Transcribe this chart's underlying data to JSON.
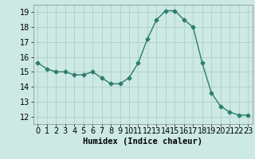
{
  "x": [
    0,
    1,
    2,
    3,
    4,
    5,
    6,
    7,
    8,
    9,
    10,
    11,
    12,
    13,
    14,
    15,
    16,
    17,
    18,
    19,
    20,
    21,
    22,
    23
  ],
  "y": [
    15.6,
    15.2,
    15.0,
    15.0,
    14.8,
    14.8,
    15.0,
    14.6,
    14.2,
    14.2,
    14.6,
    15.6,
    17.2,
    18.5,
    19.1,
    19.1,
    18.5,
    18.0,
    15.6,
    13.6,
    12.7,
    12.3,
    12.1,
    12.1
  ],
  "line_color": "#2e7d6e",
  "marker": "D",
  "marker_size": 2.5,
  "bg_color": "#cce9e4",
  "grid_color": "#b0ceca",
  "xlabel": "Humidex (Indice chaleur)",
  "xlim": [
    -0.5,
    23.5
  ],
  "ylim": [
    11.5,
    19.5
  ],
  "yticks": [
    12,
    13,
    14,
    15,
    16,
    17,
    18,
    19
  ],
  "xticks": [
    0,
    1,
    2,
    3,
    4,
    5,
    6,
    7,
    8,
    9,
    10,
    11,
    12,
    13,
    14,
    15,
    16,
    17,
    18,
    19,
    20,
    21,
    22,
    23
  ],
  "xlabel_fontsize": 7.5,
  "tick_fontsize": 7
}
